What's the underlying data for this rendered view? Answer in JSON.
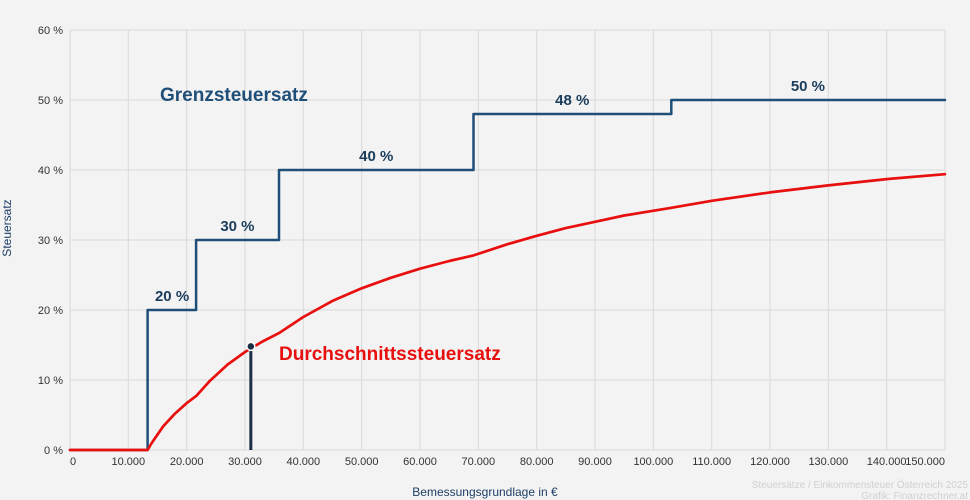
{
  "chart_data": {
    "type": "line",
    "xlabel": "Bemessungsgrundlage in €",
    "ylabel": "Steuersatz",
    "xlim": [
      0,
      150000
    ],
    "ylim": [
      0,
      60
    ],
    "grid": true,
    "x_ticks": [
      "0",
      "10.000",
      "20.000",
      "30.000",
      "40.000",
      "50.000",
      "60.000",
      "70.000",
      "80.000",
      "90.000",
      "100.000",
      "110.000",
      "120.000",
      "130.000",
      "140.000",
      "150.000"
    ],
    "y_ticks": [
      "0 %",
      "10 %",
      "20 %",
      "30 %",
      "40 %",
      "50 %",
      "60 %"
    ],
    "series": [
      {
        "name": "Grenzsteuersatz",
        "color": "#1f4e79",
        "type": "step",
        "points": [
          [
            0,
            0
          ],
          [
            13308,
            0
          ],
          [
            13308,
            20
          ],
          [
            21617,
            20
          ],
          [
            21617,
            30
          ],
          [
            35836,
            30
          ],
          [
            35836,
            40
          ],
          [
            69166,
            40
          ],
          [
            69166,
            48
          ],
          [
            103072,
            48
          ],
          [
            103072,
            50
          ],
          [
            150000,
            50
          ]
        ]
      },
      {
        "name": "Durchschnittssteuersatz",
        "color": "#e8100f",
        "type": "line",
        "points": [
          [
            0,
            0
          ],
          [
            13308,
            0
          ],
          [
            14000,
            1.0
          ],
          [
            16000,
            3.4
          ],
          [
            18000,
            5.2
          ],
          [
            20000,
            6.7
          ],
          [
            21617,
            7.7
          ],
          [
            24000,
            9.9
          ],
          [
            27000,
            12.2
          ],
          [
            30000,
            14.0
          ],
          [
            33000,
            15.5
          ],
          [
            35836,
            16.7
          ],
          [
            40000,
            19.0
          ],
          [
            45000,
            21.3
          ],
          [
            50000,
            23.1
          ],
          [
            55000,
            24.6
          ],
          [
            60000,
            25.9
          ],
          [
            65000,
            27.0
          ],
          [
            69166,
            27.8
          ],
          [
            75000,
            29.4
          ],
          [
            80000,
            30.6
          ],
          [
            85000,
            31.7
          ],
          [
            90000,
            32.6
          ],
          [
            95000,
            33.5
          ],
          [
            103072,
            34.6
          ],
          [
            110000,
            35.6
          ],
          [
            120000,
            36.8
          ],
          [
            130000,
            37.8
          ],
          [
            140000,
            38.7
          ],
          [
            150000,
            39.4
          ]
        ]
      }
    ],
    "step_labels": [
      {
        "text": "20 %",
        "x": 17500,
        "y": 20
      },
      {
        "text": "30 %",
        "x": 28700,
        "y": 30
      },
      {
        "text": "40 %",
        "x": 52500,
        "y": 40
      },
      {
        "text": "48 %",
        "x": 86100,
        "y": 48
      },
      {
        "text": "50 %",
        "x": 126500,
        "y": 50
      }
    ],
    "marker": {
      "x": 31000,
      "y": 14.8,
      "color": "#1a2e44"
    },
    "credit": [
      "Steuersätze / Einkommensteuer Österreich 2025",
      "Grafik: Finanzrechner.at"
    ]
  }
}
